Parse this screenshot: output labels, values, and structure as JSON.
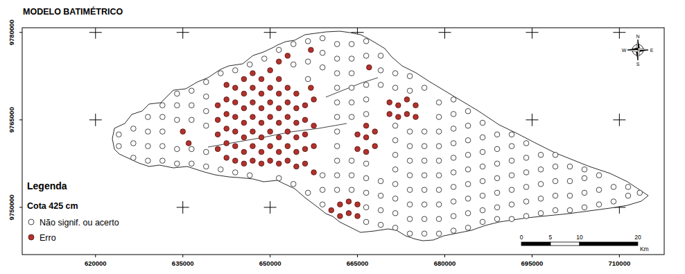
{
  "chart_data": {
    "type": "scatter",
    "title": "MODELO BATIMÉTRICO",
    "subtitle": "Cota 425 cm",
    "legend_title": "Legenda",
    "legend": "bottom-left",
    "grid": true,
    "marker": "circle",
    "xlim": [
      607400,
      717700
    ],
    "ylim": [
      9741900,
      9780800
    ],
    "xticks": [
      620000,
      635000,
      650000,
      665000,
      680000,
      695000,
      710000
    ],
    "yticks": [
      9750000,
      9765000,
      9780000
    ],
    "scale_bar": {
      "ticks": [
        0,
        5,
        10,
        20
      ],
      "unit": "Km"
    },
    "north_arrow": [
      "N",
      "E",
      "S",
      "W"
    ],
    "series": [
      {
        "name": "Não signif. ou acerto",
        "color": "#ffffff",
        "x": [
          624000,
          624000,
          626500,
          626500,
          626500,
          629000,
          629000,
          629000,
          629000,
          631500,
          631500,
          631500,
          631500,
          631500,
          634000,
          634000,
          634000,
          634000,
          634000,
          636500,
          636500,
          636500,
          636500,
          636500,
          639000,
          639000,
          639000,
          639000,
          639000,
          639000,
          641500,
          641500,
          644000,
          644000,
          646500,
          646500,
          649000,
          651500,
          651500,
          654000,
          654000,
          654000,
          656500,
          656500,
          656500,
          656500,
          659000,
          659000,
          659000,
          659000,
          659000,
          659000,
          661500,
          661500,
          661500,
          661500,
          661500,
          661500,
          661500,
          661500,
          661500,
          661500,
          661500,
          664000,
          664000,
          664000,
          664000,
          664000,
          664000,
          664000,
          664000,
          664000,
          666500,
          666500,
          666500,
          666500,
          666500,
          666500,
          666500,
          666500,
          666500,
          666500,
          669000,
          669000,
          669000,
          669000,
          669000,
          669000,
          669000,
          671500,
          671500,
          671500,
          671500,
          671500,
          671500,
          671500,
          671500,
          671500,
          671500,
          674000,
          674000,
          674000,
          674000,
          674000,
          674000,
          674000,
          674000,
          674000,
          674000,
          676500,
          676500,
          676500,
          676500,
          676500,
          676500,
          676500,
          676500,
          676500,
          679000,
          679000,
          679000,
          679000,
          679000,
          679000,
          679000,
          679000,
          679000,
          679000,
          681500,
          681500,
          681500,
          681500,
          681500,
          681500,
          681500,
          681500,
          681500,
          681500,
          684000,
          684000,
          684000,
          684000,
          684000,
          684000,
          684000,
          684000,
          684000,
          686500,
          686500,
          686500,
          686500,
          686500,
          686500,
          686500,
          686500,
          689000,
          689000,
          689000,
          689000,
          689000,
          689000,
          689000,
          691500,
          691500,
          691500,
          691500,
          691500,
          691500,
          691500,
          694000,
          694000,
          694000,
          694000,
          694000,
          694000,
          696500,
          696500,
          696500,
          696500,
          696500,
          699000,
          699000,
          699000,
          699000,
          699000,
          701500,
          701500,
          701500,
          701500,
          704000,
          704000,
          704000,
          704000,
          706500,
          706500,
          706500,
          709000,
          709000,
          711500,
          711500,
          713500
        ],
        "values": [
          9760500,
          9762500,
          9758500,
          9761000,
          9763500,
          9758000,
          9760500,
          9763000,
          9765500,
          9758000,
          9760500,
          9763000,
          9765500,
          9767500,
          9757500,
          9760000,
          9765000,
          9767500,
          9769500,
          9757500,
          9760000,
          9765000,
          9767500,
          9770000,
          9757000,
          9759500,
          9764000,
          9766500,
          9769000,
          9771500,
          9756500,
          9773000,
          9756000,
          9773500,
          9755500,
          9774500,
          9775500,
          9755000,
          9777000,
          9754000,
          9774500,
          9778000,
          9752500,
          9772000,
          9775000,
          9778500,
          9750500,
          9753000,
          9755500,
          9774000,
          9776500,
          9779000,
          9753000,
          9755500,
          9758000,
          9760500,
          9763000,
          9765500,
          9768000,
          9770500,
          9773000,
          9775500,
          9778000,
          9753000,
          9755500,
          9758000,
          9765500,
          9768000,
          9770500,
          9773000,
          9775500,
          9778000,
          9747500,
          9750000,
          9752500,
          9755000,
          9757500,
          9766000,
          9768500,
          9771000,
          9776000,
          9778500,
          9747000,
          9749500,
          9752000,
          9754500,
          9771000,
          9773500,
          9776000,
          9746500,
          9749000,
          9751500,
          9754000,
          9756500,
          9759000,
          9761500,
          9764000,
          9770500,
          9773000,
          9745500,
          9748000,
          9750500,
          9753000,
          9755500,
          9758000,
          9760500,
          9763000,
          9770000,
          9772500,
          9745500,
          9748000,
          9750500,
          9753000,
          9755500,
          9758000,
          9760500,
          9763000,
          9770500,
          9745500,
          9748000,
          9750500,
          9753000,
          9755500,
          9758000,
          9760500,
          9763000,
          9765500,
          9768000,
          9746000,
          9748500,
          9751000,
          9753500,
          9756000,
          9758500,
          9761000,
          9763500,
          9766000,
          9768500,
          9746500,
          9749000,
          9751500,
          9754000,
          9756500,
          9759000,
          9761500,
          9764000,
          9766500,
          9747500,
          9749500,
          9752000,
          9754500,
          9757000,
          9759500,
          9762000,
          9764500,
          9748000,
          9750000,
          9752500,
          9755000,
          9757500,
          9760000,
          9762500,
          9748000,
          9750500,
          9753000,
          9755500,
          9758000,
          9760500,
          9762500,
          9748500,
          9751000,
          9753500,
          9756000,
          9758500,
          9761000,
          9749000,
          9751500,
          9754000,
          9756500,
          9759000,
          9749500,
          9752000,
          9754500,
          9757000,
          9759000,
          9749500,
          9752000,
          9754500,
          9757000,
          9750000,
          9752500,
          9755000,
          9756500,
          9750500,
          9753000,
          9755500,
          9751000,
          9753500,
          9752000,
          9753500,
          9752500
        ]
      },
      {
        "name": "Erro",
        "color": "#b3312c",
        "x": [
          635000,
          636000,
          641000,
          641000,
          641000,
          641000,
          642500,
          642500,
          642500,
          642500,
          642500,
          642500,
          644000,
          644000,
          644000,
          644000,
          644000,
          644000,
          645500,
          645500,
          645500,
          645500,
          645500,
          645500,
          645500,
          647000,
          647000,
          647000,
          647000,
          647000,
          647000,
          647000,
          648500,
          648500,
          648500,
          648500,
          648500,
          648500,
          648500,
          650000,
          650000,
          650000,
          650000,
          650000,
          650000,
          650000,
          651500,
          651500,
          651500,
          651500,
          651500,
          651500,
          651500,
          651500,
          653000,
          653000,
          653000,
          653000,
          653000,
          653000,
          653000,
          654500,
          654500,
          654500,
          654500,
          654500,
          654500,
          656000,
          656000,
          656000,
          656000,
          656000,
          657000,
          657000,
          657500,
          657500,
          657500,
          657500,
          660500,
          662000,
          662000,
          663500,
          663500,
          665000,
          665000,
          665000,
          665000,
          666500,
          666500,
          666500,
          667000,
          668000,
          668000,
          670500,
          670500,
          672000,
          672000,
          673500,
          673500,
          675000,
          675000
        ],
        "values": [
          9763000,
          9761000,
          9760000,
          9762500,
          9765000,
          9767500,
          9758500,
          9761000,
          9763500,
          9766000,
          9768500,
          9771000,
          9758000,
          9760500,
          9763000,
          9765500,
          9768000,
          9770500,
          9757500,
          9759500,
          9762000,
          9764500,
          9767000,
          9769500,
          9772000,
          9758000,
          9760500,
          9763000,
          9765500,
          9768000,
          9770500,
          9773000,
          9757500,
          9759500,
          9762000,
          9764500,
          9767000,
          9769500,
          9772000,
          9758000,
          9760500,
          9763000,
          9765500,
          9768000,
          9770500,
          9773500,
          9757500,
          9759500,
          9762000,
          9764500,
          9767000,
          9769500,
          9772000,
          9775000,
          9758000,
          9760500,
          9763000,
          9765500,
          9768000,
          9770500,
          9776000,
          9757000,
          9759500,
          9762000,
          9764500,
          9767000,
          9769500,
          9757500,
          9760000,
          9762500,
          9765000,
          9767500,
          9770500,
          9777000,
          9756000,
          9760500,
          9764000,
          9768500,
          9749500,
          9748500,
          9750500,
          9749000,
          9751000,
          9748500,
          9750500,
          9760000,
          9762500,
          9759500,
          9762000,
          9764000,
          9774000,
          9760500,
          9763000,
          9766000,
          9768000,
          9765500,
          9767500,
          9766000,
          9768500,
          9765500,
          9767500
        ]
      }
    ]
  }
}
